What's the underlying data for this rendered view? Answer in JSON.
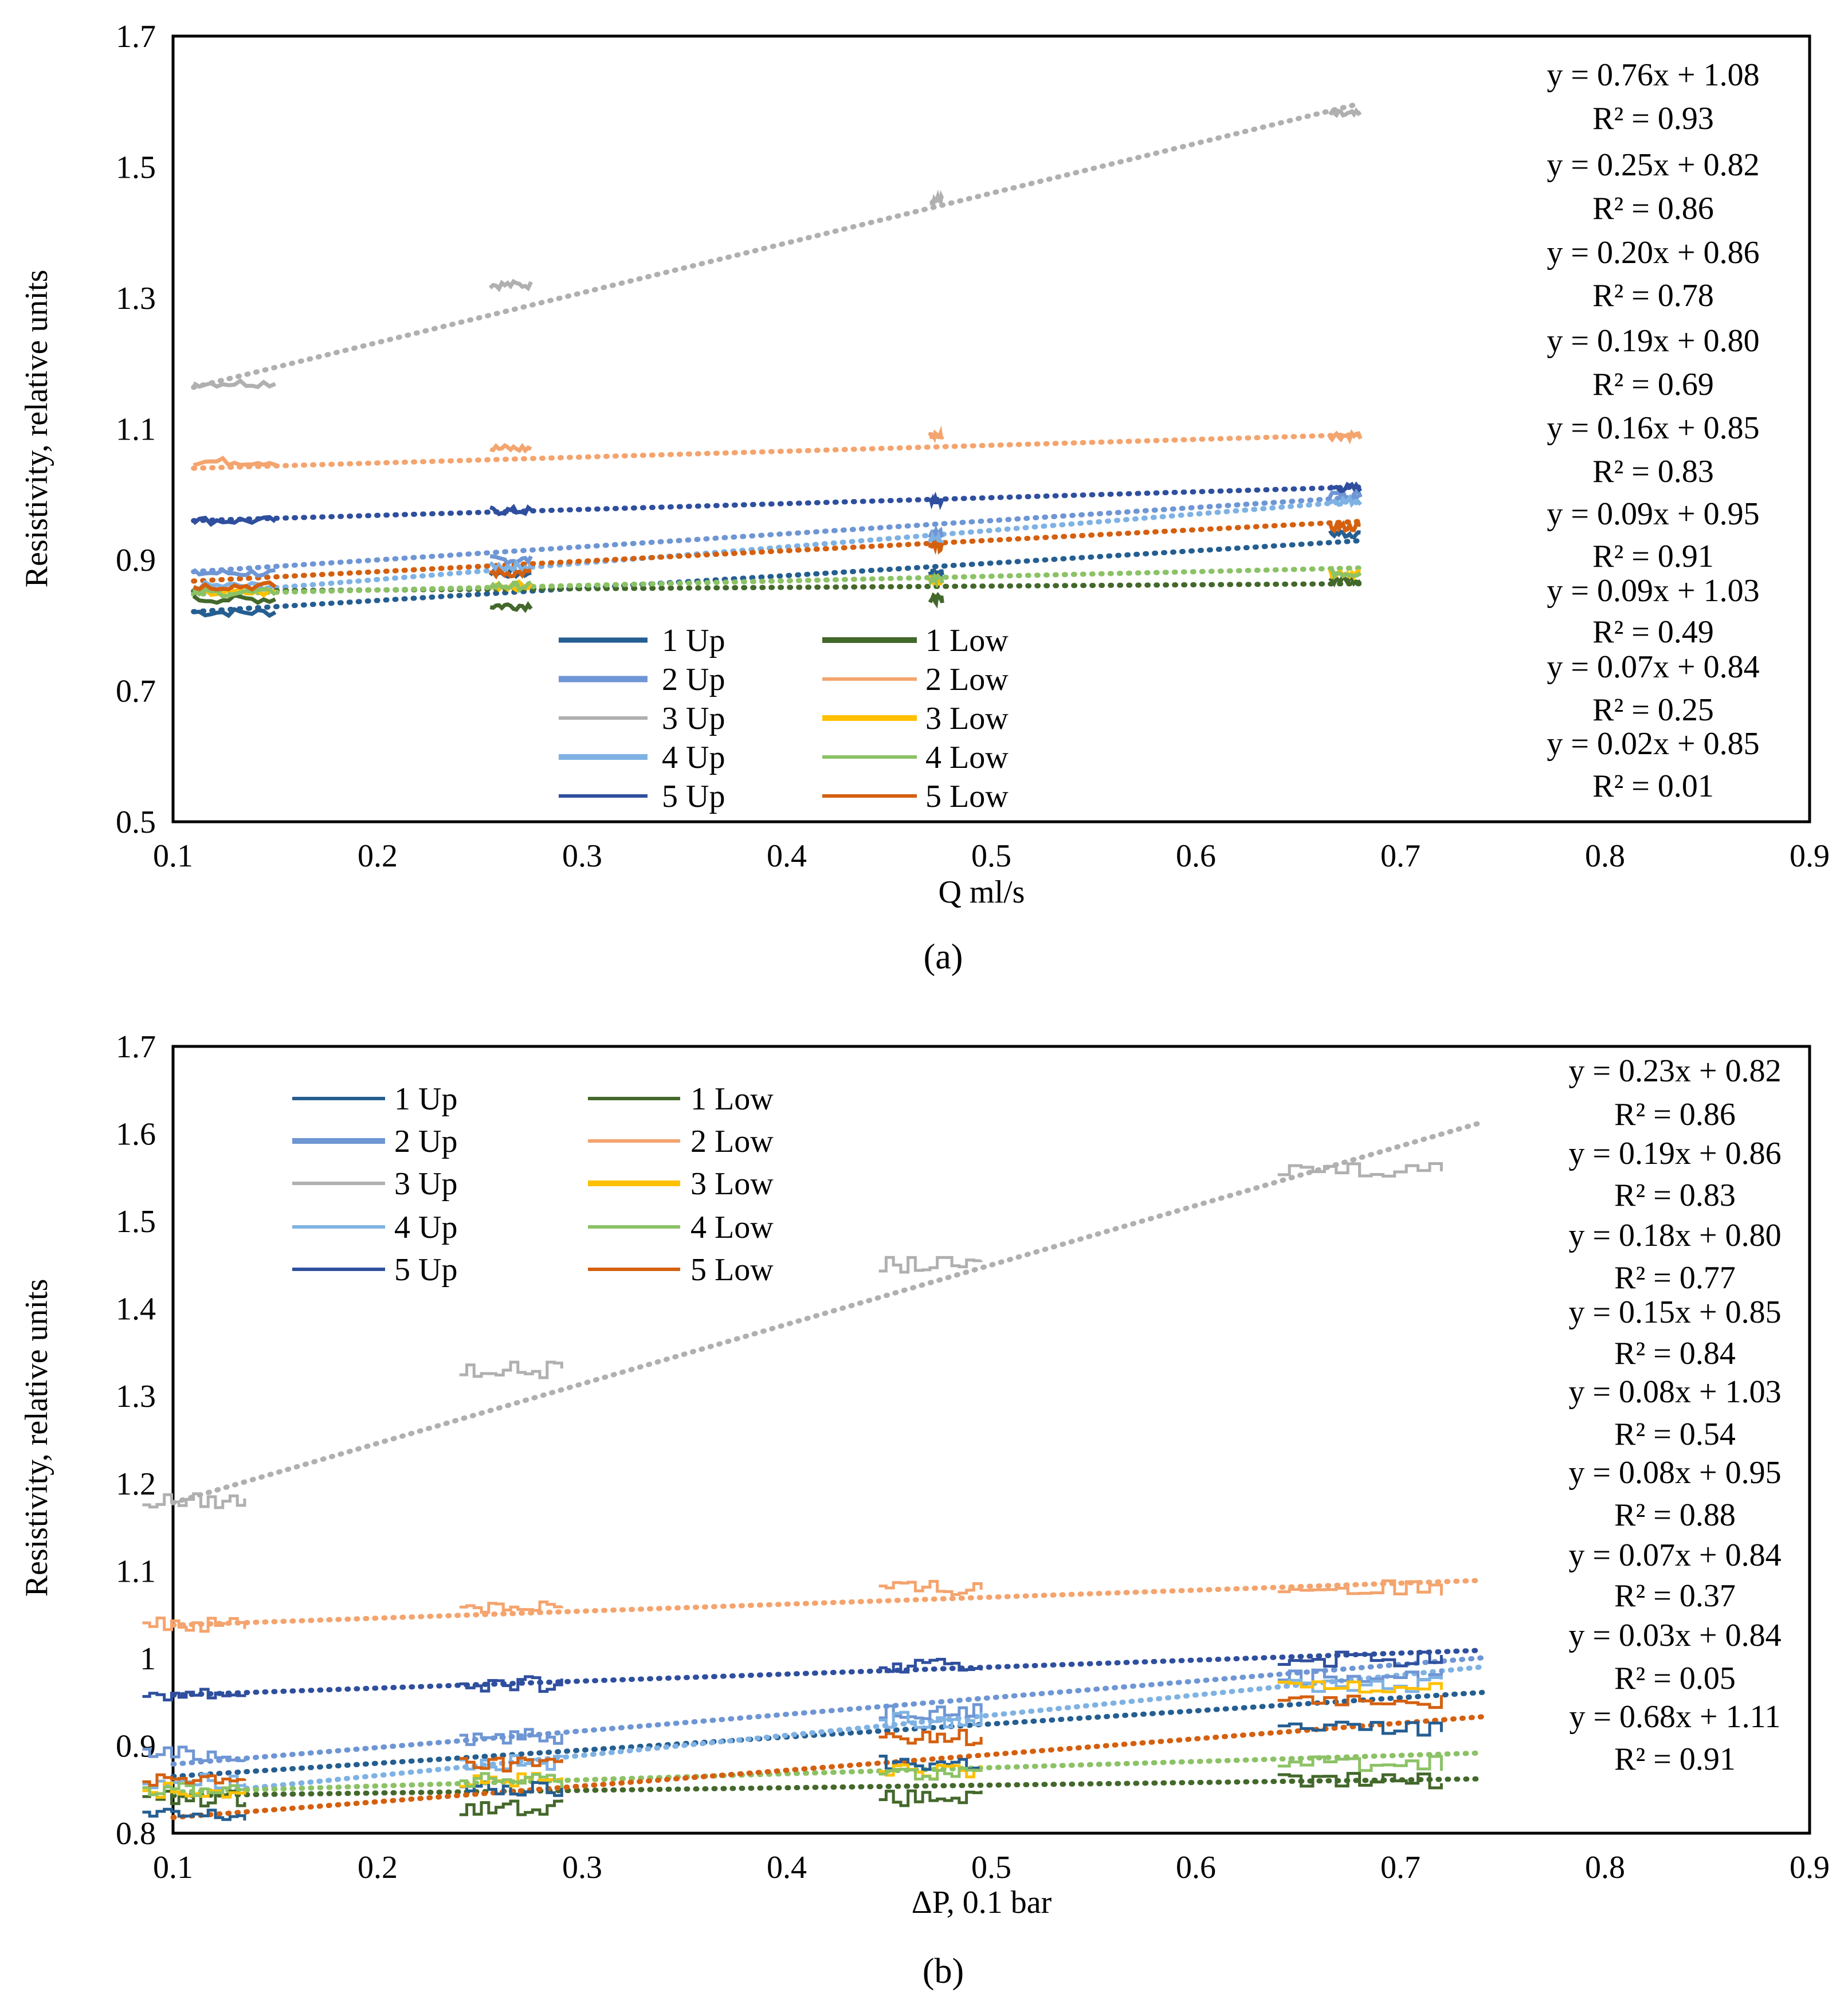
{
  "colors": {
    "1 Up": "#255e91",
    "2 Up": "#6f96d4",
    "3 Up": "#b0b0b0",
    "4 Up": "#7fb2e3",
    "5 Up": "#2f4f9e",
    "1 Low": "#43682b",
    "2 Low": "#f4a46e",
    "3 Low": "#ffc000",
    "4 Low": "#8cc266",
    "5 Low": "#d4600f"
  },
  "chart_data": [
    {
      "type": "line",
      "caption": "(a)",
      "xlabel": "Q ml/s",
      "ylabel": "Resistivity, relative units",
      "xlim": [
        0.1,
        0.9
      ],
      "ylim": [
        0.5,
        1.7
      ],
      "xticks": [
        "0.1",
        "0.2",
        "0.3",
        "0.4",
        "0.5",
        "0.6",
        "0.7",
        "0.8",
        "0.9"
      ],
      "yticks": [
        "0.5",
        "0.7",
        "0.9",
        "1.1",
        "1.3",
        "1.5",
        "1.7"
      ],
      "legend_placement": "bottom-center",
      "legend": [
        "1 Up",
        "2 Up",
        "3 Up",
        "4 Up",
        "5 Up",
        "1 Low",
        "2 Low",
        "3 Low",
        "4 Low",
        "5 Low"
      ],
      "x": [
        0.13,
        0.265,
        0.473,
        0.673
      ],
      "series": [
        {
          "name": "1 Up",
          "values": [
            0.82,
            0.88,
            0.88,
            0.94
          ],
          "trend": [
            0.19,
            0.8
          ]
        },
        {
          "name": "2 Up",
          "values": [
            0.88,
            0.9,
            0.94,
            1.0
          ],
          "trend": [
            0.2,
            0.86
          ]
        },
        {
          "name": "3 Up",
          "values": [
            1.17,
            1.32,
            1.45,
            1.58
          ],
          "trend": [
            0.76,
            1.08
          ]
        },
        {
          "name": "4 Up",
          "values": [
            0.86,
            0.89,
            0.93,
            0.99
          ],
          "trend": [
            0.25,
            0.82
          ]
        },
        {
          "name": "5 Up",
          "values": [
            0.96,
            0.975,
            0.99,
            1.01
          ],
          "trend": [
            0.09,
            0.95
          ]
        },
        {
          "name": "1 Low",
          "values": [
            0.84,
            0.83,
            0.84,
            0.87
          ],
          "trend": [
            0.02,
            0.85
          ]
        },
        {
          "name": "2 Low",
          "values": [
            1.05,
            1.07,
            1.09,
            1.09
          ],
          "trend": [
            0.09,
            1.03
          ]
        },
        {
          "name": "3 Low",
          "values": [
            0.85,
            0.86,
            0.87,
            0.88
          ],
          "trend": null
        },
        {
          "name": "4 Low",
          "values": [
            0.85,
            0.86,
            0.87,
            0.88
          ],
          "trend": [
            0.07,
            0.84
          ]
        },
        {
          "name": "5 Low",
          "values": [
            0.86,
            0.88,
            0.92,
            0.95
          ],
          "trend": [
            0.16,
            0.85
          ]
        }
      ],
      "annotations": [
        "y = 0.76x + 1.08",
        "R² = 0.93",
        "y = 0.25x + 0.82",
        "R² = 0.86",
        "y = 0.20x + 0.86",
        "R² = 0.78",
        "y = 0.19x + 0.80",
        "R² = 0.69",
        "y = 0.16x + 0.85",
        "R² = 0.83",
        "y = 0.09x + 0.95",
        "R² = 0.91",
        "y = 0.09x + 1.03",
        "R² = 0.49",
        "y = 0.07x + 0.84",
        "R² = 0.25",
        "y = 0.02x + 0.85",
        "R² = 0.01"
      ]
    },
    {
      "type": "line",
      "caption": "(b)",
      "xlabel": "ΔP, 0.1 bar",
      "ylabel": "Resistivity, relative units",
      "xlim": [
        0.1,
        0.9
      ],
      "ylim": [
        0.8,
        1.7
      ],
      "xticks": [
        "0.1",
        "0.2",
        "0.3",
        "0.4",
        "0.5",
        "0.6",
        "0.7",
        "0.8",
        "0.9"
      ],
      "yticks": [
        "0.8",
        "0.9",
        "1",
        "1.1",
        "1.2",
        "1.3",
        "1.4",
        "1.5",
        "1.6",
        "1.7"
      ],
      "legend_placement": "top-left",
      "legend": [
        "1 Up",
        "2 Up",
        "3 Up",
        "4 Up",
        "5 Up",
        "1 Low",
        "2 Low",
        "3 Low",
        "4 Low",
        "5 Low"
      ],
      "x": [
        0.11,
        0.265,
        0.47,
        0.68
      ],
      "series": [
        {
          "name": "1 Up",
          "values": [
            0.82,
            0.85,
            0.88,
            0.92
          ],
          "trend": [
            0.15,
            0.85
          ]
        },
        {
          "name": "2 Up",
          "values": [
            0.89,
            0.91,
            0.94,
            0.98
          ],
          "trend": [
            0.19,
            0.86
          ]
        },
        {
          "name": "3 Up",
          "values": [
            1.18,
            1.33,
            1.45,
            1.56
          ],
          "trend": [
            0.68,
            1.11
          ]
        },
        {
          "name": "4 Up",
          "values": [
            0.86,
            0.88,
            0.93,
            0.97
          ],
          "trend": [
            0.23,
            0.82
          ]
        },
        {
          "name": "5 Up",
          "values": [
            0.96,
            0.97,
            0.99,
            1.0
          ],
          "trend": [
            0.08,
            0.95
          ]
        },
        {
          "name": "1 Low",
          "values": [
            0.84,
            0.83,
            0.84,
            0.86
          ],
          "trend": [
            0.03,
            0.84
          ]
        },
        {
          "name": "2 Low",
          "values": [
            1.04,
            1.06,
            1.08,
            1.08
          ],
          "trend": [
            0.08,
            1.03
          ]
        },
        {
          "name": "3 Low",
          "values": [
            0.85,
            0.86,
            0.87,
            0.97
          ],
          "trend": null
        },
        {
          "name": "4 Low",
          "values": [
            0.85,
            0.86,
            0.87,
            0.88
          ],
          "trend": [
            0.07,
            0.84
          ]
        },
        {
          "name": "5 Low",
          "values": [
            0.86,
            0.88,
            0.91,
            0.95
          ],
          "trend": [
            0.18,
            0.8
          ]
        }
      ],
      "annotations": [
        "y = 0.23x + 0.82",
        "R² = 0.86",
        "y = 0.19x + 0.86",
        "R² = 0.83",
        "y = 0.18x + 0.80",
        "R² = 0.77",
        "y = 0.15x + 0.85",
        "R² = 0.84",
        "y = 0.08x + 1.03",
        "R² = 0.54",
        "y = 0.08x + 0.95",
        "R² = 0.88",
        "y = 0.07x + 0.84",
        "R² = 0.37",
        "y = 0.03x + 0.84",
        "R² = 0.05",
        "y = 0.68x + 1.11",
        "R² = 0.91"
      ]
    }
  ]
}
